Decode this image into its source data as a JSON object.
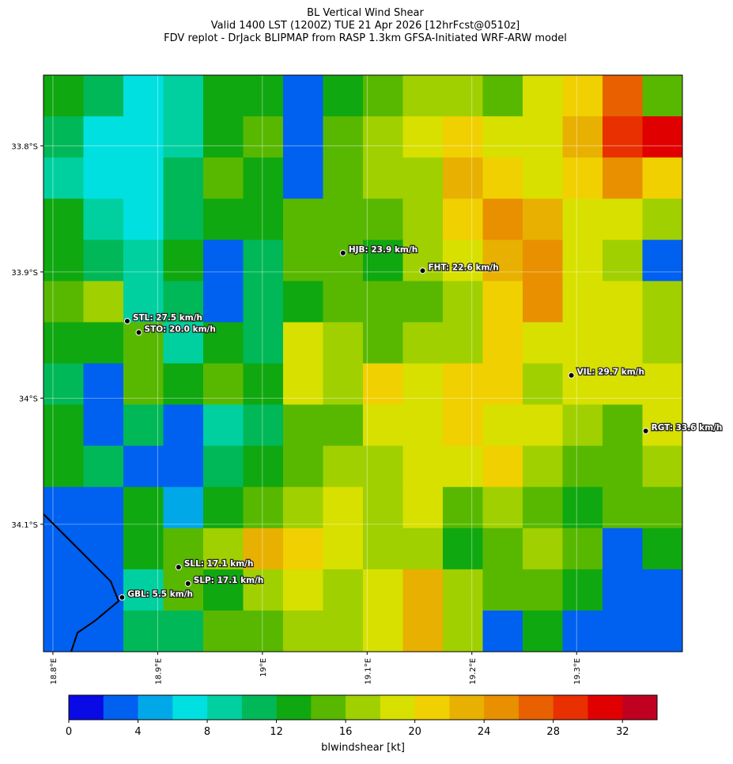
{
  "title": [
    "BL Vertical Wind Shear",
    "Valid 1400 LST (1200Z) TUE 21 Apr 2026 [12hrFcst@0510z]",
    "FDV replot - DrJack BLIPMAP from RASP 1.3km GFSA-Initiated WRF-ARW model"
  ],
  "map": {
    "xlim": [
      18.791,
      19.401
    ],
    "ylim": [
      -33.744,
      -34.201
    ],
    "xticks": [
      {
        "value": 18.8,
        "label": "18.8°E"
      },
      {
        "value": 18.9,
        "label": "18.9°E"
      },
      {
        "value": 19.0,
        "label": "19°E"
      },
      {
        "value": 19.1,
        "label": "19.1°E"
      },
      {
        "value": 19.2,
        "label": "19.2°E"
      },
      {
        "value": 19.3,
        "label": "19.3°E"
      }
    ],
    "yticks": [
      {
        "value": -33.8,
        "label": "33.8°S"
      },
      {
        "value": -33.9,
        "label": "33.9°S"
      },
      {
        "value": -34.0,
        "label": "34°S"
      },
      {
        "value": -34.1,
        "label": "34.1°S"
      }
    ],
    "grid": true,
    "shear": [
      [
        12,
        10,
        7,
        8,
        12,
        13,
        2,
        13,
        15,
        16,
        17,
        15,
        18,
        20,
        27,
        14
      ],
      [
        11,
        7,
        6,
        9,
        13,
        14,
        2,
        14,
        16,
        19,
        21,
        18,
        19,
        22,
        28,
        30
      ],
      [
        8,
        6,
        7,
        10,
        14,
        13,
        3,
        15,
        16,
        17,
        22,
        20,
        18,
        20,
        24,
        20
      ],
      [
        13,
        8,
        7,
        10,
        13,
        12,
        14,
        15,
        14,
        17,
        20,
        24,
        22,
        18,
        19,
        16
      ],
      [
        13,
        11,
        9,
        12,
        2,
        11,
        14,
        15,
        13,
        16,
        19,
        22,
        24,
        19,
        17,
        2
      ],
      [
        14,
        16,
        9,
        11,
        2,
        10,
        13,
        14,
        15,
        14,
        17,
        20,
        24,
        18,
        19,
        17
      ],
      [
        12,
        13,
        14,
        9,
        13,
        11,
        18,
        17,
        15,
        16,
        17,
        20,
        18,
        19,
        18,
        17
      ],
      [
        10,
        3,
        15,
        12,
        14,
        12,
        19,
        16,
        20,
        18,
        20,
        21,
        17,
        18,
        19,
        19
      ],
      [
        12,
        3,
        10,
        2,
        9,
        11,
        14,
        15,
        18,
        18,
        20,
        19,
        18,
        16,
        15,
        19
      ],
      [
        12,
        10,
        3,
        2,
        10,
        12,
        15,
        16,
        17,
        19,
        19,
        20,
        16,
        15,
        14,
        17
      ],
      [
        3,
        3,
        12,
        4,
        13,
        15,
        16,
        18,
        17,
        18,
        15,
        16,
        14,
        13,
        15,
        14
      ],
      [
        2,
        2,
        13,
        15,
        16,
        22,
        21,
        18,
        17,
        16,
        12,
        14,
        17,
        14,
        3,
        12
      ],
      [
        2,
        2,
        9,
        14,
        13,
        17,
        18,
        16,
        19,
        22,
        16,
        14,
        15,
        12,
        2,
        2
      ],
      [
        2,
        2,
        10,
        11,
        14,
        15,
        16,
        17,
        18,
        22,
        17,
        2,
        13,
        2,
        2,
        3
      ]
    ],
    "stations": [
      {
        "label": "HJB: 23.9 km/h",
        "lon": 19.077,
        "lat": -33.885
      },
      {
        "label": "FHT: 22.6 km/h",
        "lon": 19.153,
        "lat": -33.899
      },
      {
        "label": "STL: 27.5 km/h",
        "lon": 18.871,
        "lat": -33.939
      },
      {
        "label": "STO: 20.0 km/h",
        "lon": 18.882,
        "lat": -33.948
      },
      {
        "label": "VIL: 29.7 km/h",
        "lon": 19.295,
        "lat": -33.982
      },
      {
        "label": "RGT: 33.6 km/h",
        "lon": 19.366,
        "lat": -34.026
      },
      {
        "label": "SLL: 17.1 km/h",
        "lon": 18.92,
        "lat": -34.134
      },
      {
        "label": "SLP: 17.1 km/h",
        "lon": 18.929,
        "lat": -34.147
      },
      {
        "label": "GBL: 5.5 km/h",
        "lon": 18.866,
        "lat": -34.158
      }
    ]
  },
  "colorbar": {
    "label": "blwindshear [kt]",
    "lim": [
      0,
      34
    ],
    "ticks": [
      0,
      4,
      8,
      12,
      16,
      20,
      24,
      28,
      32
    ],
    "colors": [
      "#0a0ae6",
      "#0060f0",
      "#00a8e8",
      "#00e0e0",
      "#00d0a0",
      "#00b858",
      "#10a810",
      "#58b800",
      "#a0d000",
      "#d8e000",
      "#f0d000",
      "#e8b000",
      "#e89000",
      "#e86000",
      "#e83000",
      "#e00000",
      "#c00020"
    ]
  }
}
